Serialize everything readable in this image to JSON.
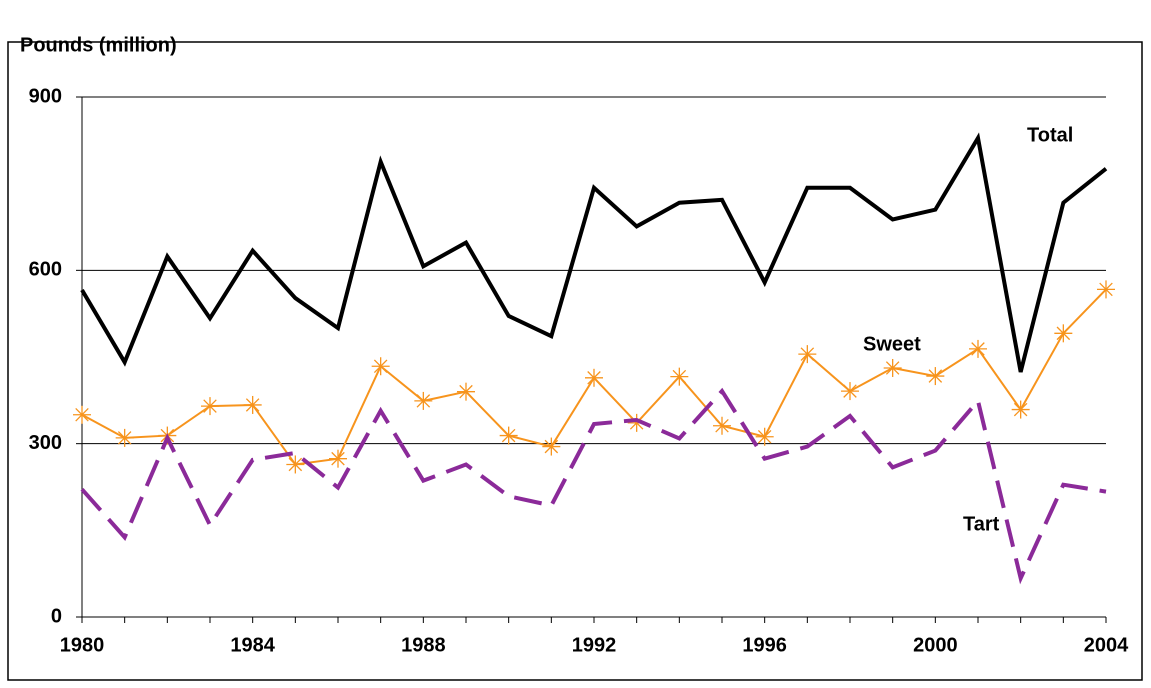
{
  "chart_data": {
    "type": "line",
    "y_label": "Pounds (million)",
    "x": [
      1980,
      1981,
      1982,
      1983,
      1984,
      1985,
      1986,
      1987,
      1988,
      1989,
      1990,
      1991,
      1992,
      1993,
      1994,
      1995,
      1996,
      1997,
      1998,
      1999,
      2000,
      2001,
      2002,
      2003,
      2004
    ],
    "series": [
      {
        "name": "Total",
        "color": "#000000",
        "dashed": false,
        "marker": "none",
        "values": [
          566,
          441,
          624,
          517,
          634,
          552,
          500,
          788,
          607,
          648,
          521,
          486,
          743,
          676,
          717,
          722,
          579,
          743,
          743,
          688,
          705,
          829,
          424,
          717,
          776
        ]
      },
      {
        "name": "Sweet",
        "color": "#f7941d",
        "dashed": false,
        "marker": "asterisk",
        "values": [
          350,
          310,
          314,
          365,
          367,
          264,
          274,
          434,
          374,
          390,
          314,
          295,
          414,
          336,
          416,
          331,
          312,
          455,
          391,
          431,
          417,
          464,
          359,
          491,
          567
        ]
      },
      {
        "name": "Tart",
        "color": "#8b2a99",
        "dashed": true,
        "marker": "none",
        "values": [
          221,
          138,
          310,
          159,
          272,
          284,
          224,
          357,
          236,
          264,
          209,
          193,
          334,
          341,
          309,
          391,
          274,
          295,
          348,
          259,
          288,
          374,
          67,
          229,
          217
        ]
      }
    ],
    "xlim": [
      1980,
      2004
    ],
    "xticks": [
      1980,
      1984,
      1988,
      1992,
      1996,
      2000,
      2004
    ],
    "ylim": [
      0,
      900
    ],
    "yticks": [
      0,
      300,
      600,
      900
    ],
    "grid": true
  }
}
